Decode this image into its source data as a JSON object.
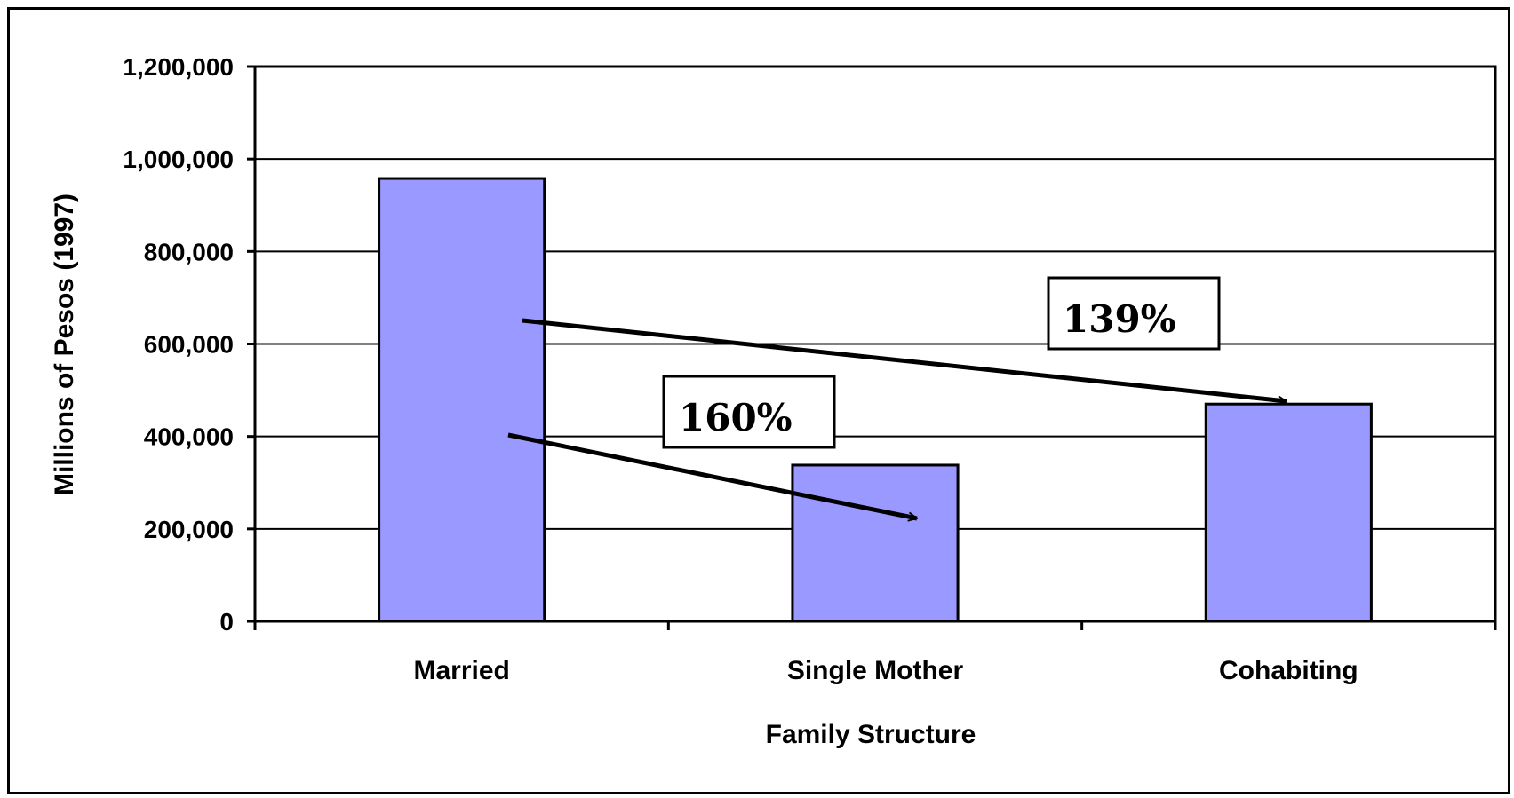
{
  "chart_data": {
    "type": "bar",
    "categories": [
      "Married",
      "Single Mother",
      "Cohabiting"
    ],
    "values": [
      958000,
      338000,
      470000
    ],
    "xlabel": "Family Structure",
    "ylabel": "Millions of Pesos (1997)",
    "ylim": [
      0,
      1200000
    ],
    "yticks": [
      0,
      200000,
      400000,
      600000,
      800000,
      1000000,
      1200000
    ],
    "ytick_labels": [
      "0",
      "200,000",
      "400,000",
      "600,000",
      "800,000",
      "1,000,000",
      "1,200,000"
    ],
    "grid": true,
    "bar_color": "#9999ff",
    "annotations": [
      {
        "text": "160%",
        "from": "Married",
        "to": "Single Mother"
      },
      {
        "text": "139%",
        "from": "Married",
        "to": "Cohabiting"
      }
    ]
  }
}
